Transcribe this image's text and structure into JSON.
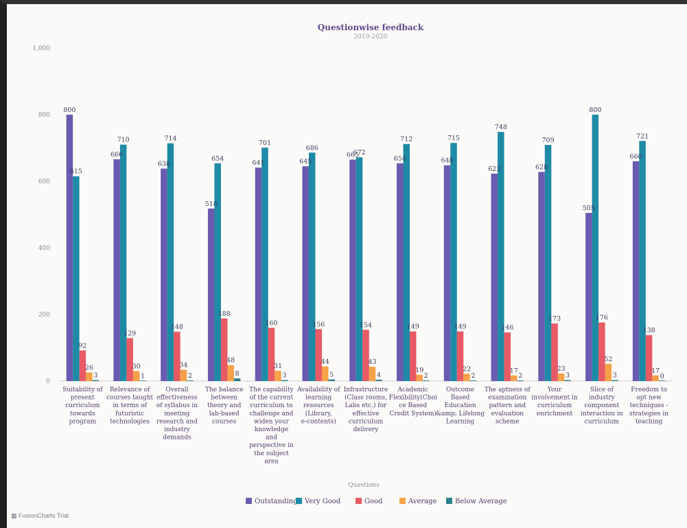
{
  "chart_data": {
    "type": "bar",
    "title": "Questionwise feedback",
    "subtitle": "2019-2020",
    "xlabel": "Questions",
    "ylabel": "",
    "ylim": [
      0,
      1000
    ],
    "yticks": [
      "0",
      "200",
      "400",
      "600",
      "800",
      "1,000"
    ],
    "grid": false,
    "legend_position": "bottom",
    "categories": [
      "Suitability of present curriculum towards program",
      "Relevance of courses taught in terms of futuristic technologies",
      "Overall effectiveness of syllabus in meeting research and industry demands",
      "The balance between theory and lab-based courses",
      "The capability of the current curriculum to challenge and widen your knowledge and perspective in the subject area",
      "Availability of learning resources (Library, e-contents)",
      "Infrastructure (Class rooms, Labs etc.) for effective curriculum delivery",
      "Academic Flexibility(Choice Based Credit System)",
      "Outcome Based Education &amp; Lifelong Learning",
      "The aptness of examination pattern and evaluation scheme",
      "Your involvement in curriculum enrichment",
      "Slice of industry component interaction in curriculum",
      "Freedom to opt new techniques - strategies in teaching"
    ],
    "category_lines": [
      [
        "Suitability of",
        "present",
        "curriculum",
        "towards",
        "program"
      ],
      [
        "Relevance of",
        "courses taught",
        "in terms of",
        "futuristic",
        "technologies"
      ],
      [
        "Overall",
        "effectiveness",
        "of syllabus in",
        "meeting",
        "research and",
        "industry",
        "demands"
      ],
      [
        "The balance",
        "between",
        "theory and",
        "lab-based",
        "courses"
      ],
      [
        "The capability",
        "of the current",
        "curriculum to",
        "challenge and",
        "widen your",
        "knowledge",
        "and",
        "perspective in",
        "the subject",
        "area"
      ],
      [
        "Availability of",
        "learning",
        "resources",
        "(Library,",
        "e-contents)"
      ],
      [
        "Infrastructure",
        "(Class rooms,",
        "Labs etc.) for",
        "effective",
        "curriculum",
        "delivery"
      ],
      [
        "Academic",
        "Flexibility(Choi",
        "ce Based",
        "Credit System)"
      ],
      [
        "Outcome",
        "Based",
        "Education",
        "&amp; Lifelong",
        "Learning"
      ],
      [
        "The aptness of",
        "examination",
        "pattern and",
        "evaluation",
        "scheme"
      ],
      [
        "Your",
        "involvement in",
        "curriculum",
        "enrichment"
      ],
      [
        "Slice of",
        "industry",
        "component",
        "interaction in",
        "curriculum"
      ],
      [
        "Freedom to",
        "opt new",
        "techniques -",
        "strategies in",
        "teaching"
      ]
    ],
    "series": [
      {
        "name": "Outstanding",
        "color": "#6a5bb0",
        "values": [
          800,
          666,
          638,
          518,
          641,
          645,
          665,
          654,
          648,
          623,
          628,
          505,
          660
        ]
      },
      {
        "name": "Very Good",
        "color": "#1e8aa6",
        "values": [
          615,
          710,
          714,
          654,
          701,
          686,
          672,
          712,
          715,
          748,
          709,
          800,
          721
        ]
      },
      {
        "name": "Good",
        "color": "#e85a64",
        "values": [
          92,
          129,
          148,
          188,
          160,
          156,
          154,
          149,
          149,
          146,
          173,
          176,
          138
        ]
      },
      {
        "name": "Average",
        "color": "#f5a24a",
        "values": [
          26,
          30,
          34,
          48,
          31,
          44,
          43,
          19,
          22,
          17,
          23,
          52,
          17
        ]
      },
      {
        "name": "Below Average",
        "color": "#2f7f8f",
        "values": [
          3,
          1,
          2,
          8,
          3,
          5,
          4,
          2,
          2,
          2,
          3,
          3,
          0
        ]
      }
    ]
  },
  "branding": {
    "text": "FusionCharts Trial",
    "icon": "fusioncharts-logo-icon"
  }
}
